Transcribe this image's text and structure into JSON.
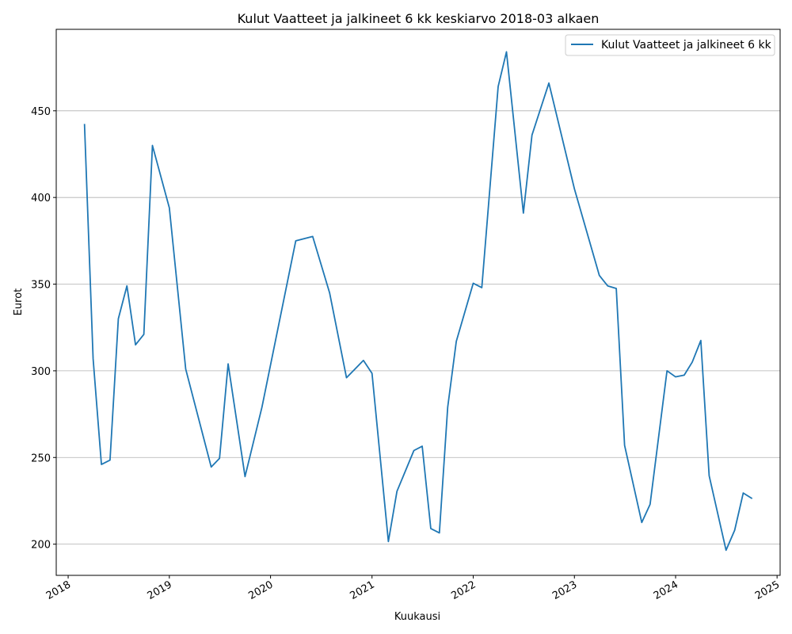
{
  "chart_data": {
    "type": "line",
    "title": "Kulut Vaatteet ja jalkineet 6 kk keskiarvo 2018-03 alkaen",
    "xlabel": "Kuukausi",
    "ylabel": "Eurot",
    "legend_placement": "top-right",
    "grid": "horizontal",
    "ylim": [
      182,
      497
    ],
    "xlim": [
      "2017-11-19",
      "2025-01-12"
    ],
    "y_ticks": [
      200,
      250,
      300,
      350,
      400,
      450
    ],
    "x_ticks": [
      "2018-01-01",
      "2019-01-01",
      "2020-01-01",
      "2021-01-01",
      "2022-01-01",
      "2023-01-01",
      "2024-01-01",
      "2025-01-01"
    ],
    "x_tick_labels": [
      "2018",
      "2019",
      "2020",
      "2021",
      "2022",
      "2023",
      "2024",
      "2025"
    ],
    "series": [
      {
        "name": "Kulut Vaatteet ja jalkineet 6 kk",
        "color": "#1f77b4",
        "points": [
          [
            "2018-03-01",
            442
          ],
          [
            "2018-04-01",
            307
          ],
          [
            "2018-05-01",
            246
          ],
          [
            "2018-06-01",
            248.5
          ],
          [
            "2018-07-01",
            330
          ],
          [
            "2018-08-01",
            349
          ],
          [
            "2018-09-01",
            315
          ],
          [
            "2018-10-01",
            321
          ],
          [
            "2018-11-01",
            430
          ],
          [
            "2019-01-01",
            394
          ],
          [
            "2019-03-01",
            301
          ],
          [
            "2019-06-01",
            244.5
          ],
          [
            "2019-07-01",
            249.5
          ],
          [
            "2019-08-01",
            304
          ],
          [
            "2019-10-01",
            239
          ],
          [
            "2019-12-01",
            279
          ],
          [
            "2020-04-01",
            375
          ],
          [
            "2020-06-01",
            377.5
          ],
          [
            "2020-08-01",
            345
          ],
          [
            "2020-10-01",
            296
          ],
          [
            "2020-12-01",
            306
          ],
          [
            "2021-01-01",
            298.5
          ],
          [
            "2021-03-01",
            201.5
          ],
          [
            "2021-04-01",
            230.5
          ],
          [
            "2021-06-01",
            254
          ],
          [
            "2021-07-01",
            256.5
          ],
          [
            "2021-08-01",
            209
          ],
          [
            "2021-09-01",
            206.5
          ],
          [
            "2021-10-01",
            279
          ],
          [
            "2021-11-01",
            317
          ],
          [
            "2022-01-01",
            350.5
          ],
          [
            "2022-02-01",
            348
          ],
          [
            "2022-04-01",
            464
          ],
          [
            "2022-05-01",
            484
          ],
          [
            "2022-07-01",
            391
          ],
          [
            "2022-08-01",
            436
          ],
          [
            "2022-10-01",
            466
          ],
          [
            "2023-01-01",
            405
          ],
          [
            "2023-04-01",
            355
          ],
          [
            "2023-05-01",
            349
          ],
          [
            "2023-06-01",
            347.5
          ],
          [
            "2023-07-01",
            257
          ],
          [
            "2023-09-01",
            212.5
          ],
          [
            "2023-10-01",
            223
          ],
          [
            "2023-12-01",
            300
          ],
          [
            "2024-01-01",
            296.5
          ],
          [
            "2024-02-01",
            297.5
          ],
          [
            "2024-03-01",
            305
          ],
          [
            "2024-04-01",
            317.5
          ],
          [
            "2024-05-01",
            239.5
          ],
          [
            "2024-07-01",
            196.5
          ],
          [
            "2024-08-01",
            208
          ],
          [
            "2024-09-01",
            229.5
          ],
          [
            "2024-10-01",
            226.5
          ]
        ]
      }
    ]
  }
}
